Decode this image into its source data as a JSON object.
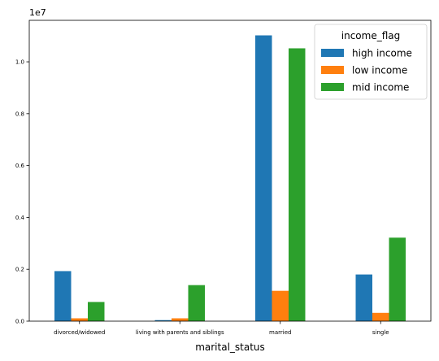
{
  "chart_data": {
    "type": "bar",
    "categories": [
      "divorced/widowed",
      "living with parents and siblings",
      "married",
      "single"
    ],
    "series": [
      {
        "name": "high income",
        "color": "#1f77b4",
        "values": [
          1930000,
          40000,
          11020000,
          1800000
        ]
      },
      {
        "name": "low income",
        "color": "#ff7f0e",
        "values": [
          110000,
          110000,
          1170000,
          320000
        ]
      },
      {
        "name": "mid income",
        "color": "#2ca02c",
        "values": [
          740000,
          1390000,
          10520000,
          3220000
        ]
      }
    ],
    "xlabel": "marital_status",
    "ylabel": "",
    "ylim": [
      0,
      11600000
    ],
    "yticks": [
      0,
      2000000,
      4000000,
      6000000,
      8000000,
      10000000
    ],
    "ytick_labels": [
      "0.0",
      "0.2",
      "0.4",
      "0.6",
      "0.8",
      "1.0"
    ],
    "y_offset_label": "1e7",
    "legend": {
      "title": "income_flag",
      "position": "top-right"
    },
    "grid": false
  }
}
